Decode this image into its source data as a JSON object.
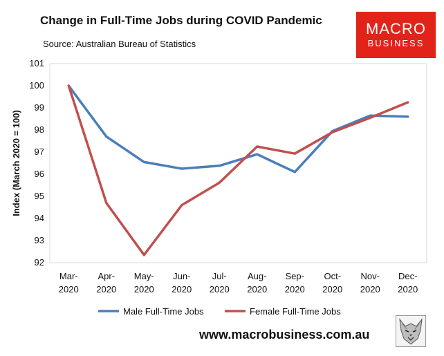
{
  "header": {
    "title": "Change in Full-Time Jobs during COVID Pandemic",
    "source": "Source: Australian Bureau of Statistics"
  },
  "logo": {
    "line1": "MACRO",
    "line2": "BUSINESS",
    "color": "#e2231a"
  },
  "footer": {
    "url": "www.macrobusiness.com.au",
    "mascot_icon": "wolf-icon"
  },
  "chart_data": {
    "type": "line",
    "title": "Change in Full-Time Jobs during COVID Pandemic",
    "ylabel": "Index (March 2020 = 100)",
    "xlabel": "",
    "categories": [
      [
        "Mar-",
        "2020"
      ],
      [
        "Apr-",
        "2020"
      ],
      [
        "May-",
        "2020"
      ],
      [
        "Jun-",
        "2020"
      ],
      [
        "Jul-",
        "2020"
      ],
      [
        "Aug-",
        "2020"
      ],
      [
        "Sep-",
        "2020"
      ],
      [
        "Oct-",
        "2020"
      ],
      [
        "Nov-",
        "2020"
      ],
      [
        "Dec-",
        "2020"
      ]
    ],
    "ylim": [
      92,
      101
    ],
    "yticks": [
      92,
      93,
      94,
      95,
      96,
      97,
      98,
      99,
      100,
      101
    ],
    "grid": false,
    "legend": "bottom",
    "series": [
      {
        "name": "Male Full-Time Jobs",
        "color": "#4a7ebb",
        "values": [
          100.0,
          97.7,
          96.55,
          96.25,
          96.38,
          96.9,
          96.1,
          97.95,
          98.65,
          98.6
        ]
      },
      {
        "name": "Female Full-Time Jobs",
        "color": "#c0504d",
        "values": [
          100.0,
          94.7,
          92.35,
          94.6,
          95.62,
          97.25,
          96.93,
          97.9,
          98.55,
          99.25
        ]
      }
    ]
  }
}
